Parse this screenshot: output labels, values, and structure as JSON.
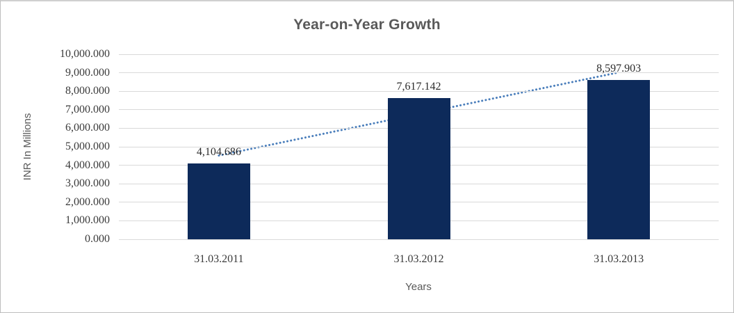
{
  "chart_data": {
    "type": "bar",
    "title": "Year-on-Year Growth",
    "xlabel": "Years",
    "ylabel": "INR In Millions",
    "categories": [
      "31.03.2011",
      "31.03.2012",
      "31.03.2013"
    ],
    "values": [
      4104.686,
      7617.142,
      8597.903
    ],
    "data_labels": [
      "4,104.686",
      "7,617.142",
      "8,597.903"
    ],
    "ylim": [
      0,
      10000
    ],
    "ytick_interval": 1000,
    "ytick_labels": [
      "0.000",
      "1,000.000",
      "2,000.000",
      "3,000.000",
      "4,000.000",
      "5,000.000",
      "6,000.000",
      "7,000.000",
      "8,000.000",
      "9,000.000",
      "10,000.000"
    ],
    "grid": true,
    "legend": "none",
    "trendline": {
      "kind": "linear",
      "style": "dotted"
    },
    "colors": {
      "bar": "#0d2a5a",
      "trendline": "#4a7ebb",
      "gridline": "#d9d9d9",
      "title": "#595959",
      "axis_title": "#595959",
      "tick_label": "#3a3a3a",
      "data_label": "#2b2b2b",
      "background": "#ffffff"
    }
  }
}
